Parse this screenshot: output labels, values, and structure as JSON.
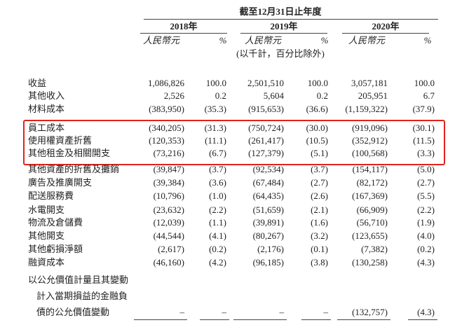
{
  "header": {
    "period": "截至12月31日止年度",
    "years": [
      "2018年",
      "2019年",
      "2020年"
    ],
    "units": [
      "人民幣元",
      "%",
      "人民幣元",
      "%",
      "人民幣元",
      "%"
    ],
    "note": "(以千計，百分比除外)"
  },
  "table": {
    "rows": [
      {
        "label": [
          "收益"
        ],
        "values": [
          "1,086,826",
          "100.0",
          "2,501,510",
          "100.0",
          "3,057,181",
          "100.0"
        ]
      },
      {
        "label": [
          "其他收入"
        ],
        "values": [
          "2,526",
          "0.2",
          "5,604",
          "0.2",
          "205,951",
          "6.7"
        ]
      },
      {
        "label": [
          "材料成本"
        ],
        "values": [
          "(383,950)",
          "(35.3)",
          "(915,653)",
          "(36.6)",
          "(1,159,322)",
          "(37.9)"
        ]
      },
      {
        "label": [
          "員工成本"
        ],
        "values": [
          "(340,205)",
          "(31.3)",
          "(750,724)",
          "(30.0)",
          "(919,096)",
          "(30.1)"
        ]
      },
      {
        "label": [
          "使用權資產折舊"
        ],
        "values": [
          "(120,353)",
          "(11.1)",
          "(261,417)",
          "(10.5)",
          "(352,912)",
          "(11.5)"
        ]
      },
      {
        "label": [
          "其他租金及相關開支"
        ],
        "values": [
          "(73,216)",
          "(6.7)",
          "(127,379)",
          "(5.1)",
          "(100,568)",
          "(3.3)"
        ]
      },
      {
        "label": [
          "其他資產的折舊及攤銷"
        ],
        "values": [
          "(39,847)",
          "(3.7)",
          "(92,534)",
          "(3.7)",
          "(154,117)",
          "(5.0)"
        ]
      },
      {
        "label": [
          "廣告及推廣開支"
        ],
        "values": [
          "(39,384)",
          "(3.6)",
          "(67,484)",
          "(2.7)",
          "(82,172)",
          "(2.7)"
        ]
      },
      {
        "label": [
          "配送服務費"
        ],
        "values": [
          "(10,796)",
          "(1.0)",
          "(64,435)",
          "(2.6)",
          "(167,369)",
          "(5.5)"
        ]
      },
      {
        "label": [
          "水電開支"
        ],
        "values": [
          "(23,632)",
          "(2.2)",
          "(51,659)",
          "(2.1)",
          "(66,909)",
          "(2.2)"
        ]
      },
      {
        "label": [
          "物流及倉儲費"
        ],
        "values": [
          "(12,039)",
          "(1.1)",
          "(39,891)",
          "(1.6)",
          "(56,710)",
          "(1.9)"
        ]
      },
      {
        "label": [
          "其他開支"
        ],
        "values": [
          "(44,544)",
          "(4.1)",
          "(80,267)",
          "(3.2)",
          "(123,655)",
          "(4.0)"
        ]
      },
      {
        "label": [
          "其他虧損淨額"
        ],
        "values": [
          "(2,617)",
          "(0.2)",
          "(2,176)",
          "(0.1)",
          "(7,382)",
          "(0.2)"
        ]
      },
      {
        "label": [
          "融資成本"
        ],
        "values": [
          "(46,160)",
          "(4.2)",
          "(96,185)",
          "(3.8)",
          "(130,258)",
          "(4.3)"
        ]
      },
      {
        "label": [
          "以公允價值計量且其變動",
          "計入當期損益的金融負",
          "債的公允價值變動"
        ],
        "values": [
          "–",
          "–",
          "–",
          "–",
          "(132,757)",
          "(4.3)"
        ]
      }
    ]
  }
}
